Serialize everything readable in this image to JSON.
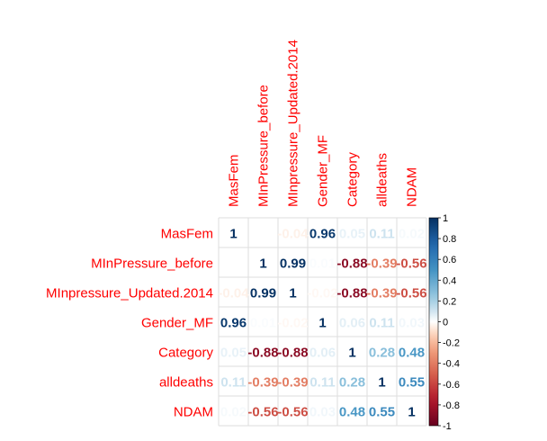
{
  "chart_data": {
    "type": "heatmap",
    "variables": [
      "MasFem",
      "MInPressure_before",
      "MInpressure_Updated.2014",
      "Gender_MF",
      "Category",
      "alldeaths",
      "NDAM"
    ],
    "matrix": [
      [
        1.0,
        0.0,
        -0.04,
        0.96,
        0.05,
        0.11,
        0.02
      ],
      [
        0.0,
        1.0,
        0.99,
        0.01,
        -0.88,
        -0.39,
        -0.56
      ],
      [
        -0.04,
        0.99,
        1.0,
        -0.02,
        -0.88,
        -0.39,
        -0.56
      ],
      [
        0.96,
        0.01,
        -0.02,
        1.0,
        0.06,
        0.11,
        0.03
      ],
      [
        0.05,
        -0.88,
        -0.88,
        0.06,
        1.0,
        0.28,
        0.48
      ],
      [
        0.11,
        -0.39,
        -0.39,
        0.11,
        0.28,
        1.0,
        0.55
      ],
      [
        0.02,
        -0.56,
        -0.56,
        0.03,
        0.48,
        0.55,
        1.0
      ]
    ],
    "labels": [
      [
        "1",
        "0.00",
        "-0.04",
        "0.96",
        "0.05",
        "0.11",
        "0.02"
      ],
      [
        "0.00",
        "1",
        "0.99",
        "0.01",
        "-0.88",
        "-0.39",
        "-0.56"
      ],
      [
        "-0.04",
        "0.99",
        "1",
        "-0.02",
        "-0.88",
        "-0.39",
        "-0.56"
      ],
      [
        "0.96",
        "0.01",
        "-0.02",
        "1",
        "0.06",
        "0.11",
        "0.03"
      ],
      [
        "0.05",
        "-0.88",
        "-0.88",
        "0.06",
        "1",
        "0.28",
        "0.48"
      ],
      [
        "0.11",
        "-0.39",
        "-0.39",
        "0.11",
        "0.28",
        "1",
        "0.55"
      ],
      [
        "0.02",
        "-0.56",
        "-0.56",
        "0.03",
        "0.48",
        "0.55",
        "1"
      ]
    ],
    "colorbar": {
      "range": [
        -1,
        1
      ],
      "ticks": [
        "1",
        "0.8",
        "0.6",
        "0.4",
        "0.2",
        "0",
        "-0.2",
        "-0.4",
        "-0.6",
        "-0.8",
        "-1"
      ],
      "tick_values": [
        1,
        0.8,
        0.6,
        0.4,
        0.2,
        0,
        -0.2,
        -0.4,
        -0.6,
        -0.8,
        -1
      ]
    },
    "colors": {
      "negative_end": "#67001F",
      "positive_end": "#053061",
      "label_color": "#FF0000",
      "grid": "#DDDDDD"
    },
    "legend": "right"
  }
}
